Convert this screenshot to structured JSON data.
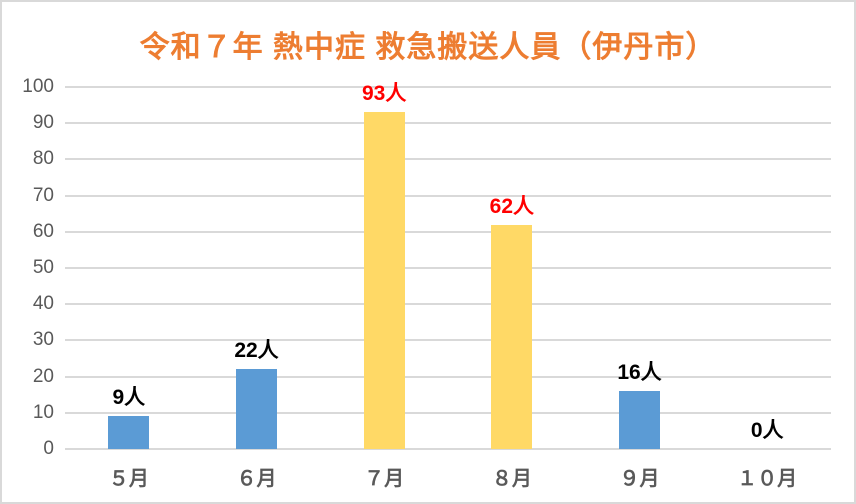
{
  "chart_data": {
    "type": "bar",
    "title": "令和７年 熱中症 救急搬送人員（伊丹市）",
    "categories": [
      "５月",
      "６月",
      "７月",
      "８月",
      "９月",
      "１０月"
    ],
    "values": [
      9,
      22,
      93,
      62,
      16,
      0
    ],
    "data_labels": [
      "9人",
      "22人",
      "93人",
      "62人",
      "16人",
      "0人"
    ],
    "bar_colors": [
      "#5B9BD5",
      "#5B9BD5",
      "#FFD966",
      "#FFD966",
      "#5B9BD5",
      "#5B9BD5"
    ],
    "data_label_colors": [
      "#000000",
      "#000000",
      "#FF0000",
      "#FF0000",
      "#000000",
      "#000000"
    ],
    "xlabel": "",
    "ylabel": "",
    "ylim": [
      0,
      100
    ],
    "yticks": [
      0,
      10,
      20,
      30,
      40,
      50,
      60,
      70,
      80,
      90,
      100
    ],
    "grid": true,
    "legend": false
  },
  "style": {
    "title_color": "#ED7D31",
    "axis_label_color": "#595959",
    "gridline_color": "#D9D9D9",
    "frame_border_color": "#D9D9D9",
    "background_color": "#FFFFFF",
    "bar_blue": "#5B9BD5",
    "bar_yellow": "#FFD966",
    "highlight_label_color": "#FF0000"
  }
}
